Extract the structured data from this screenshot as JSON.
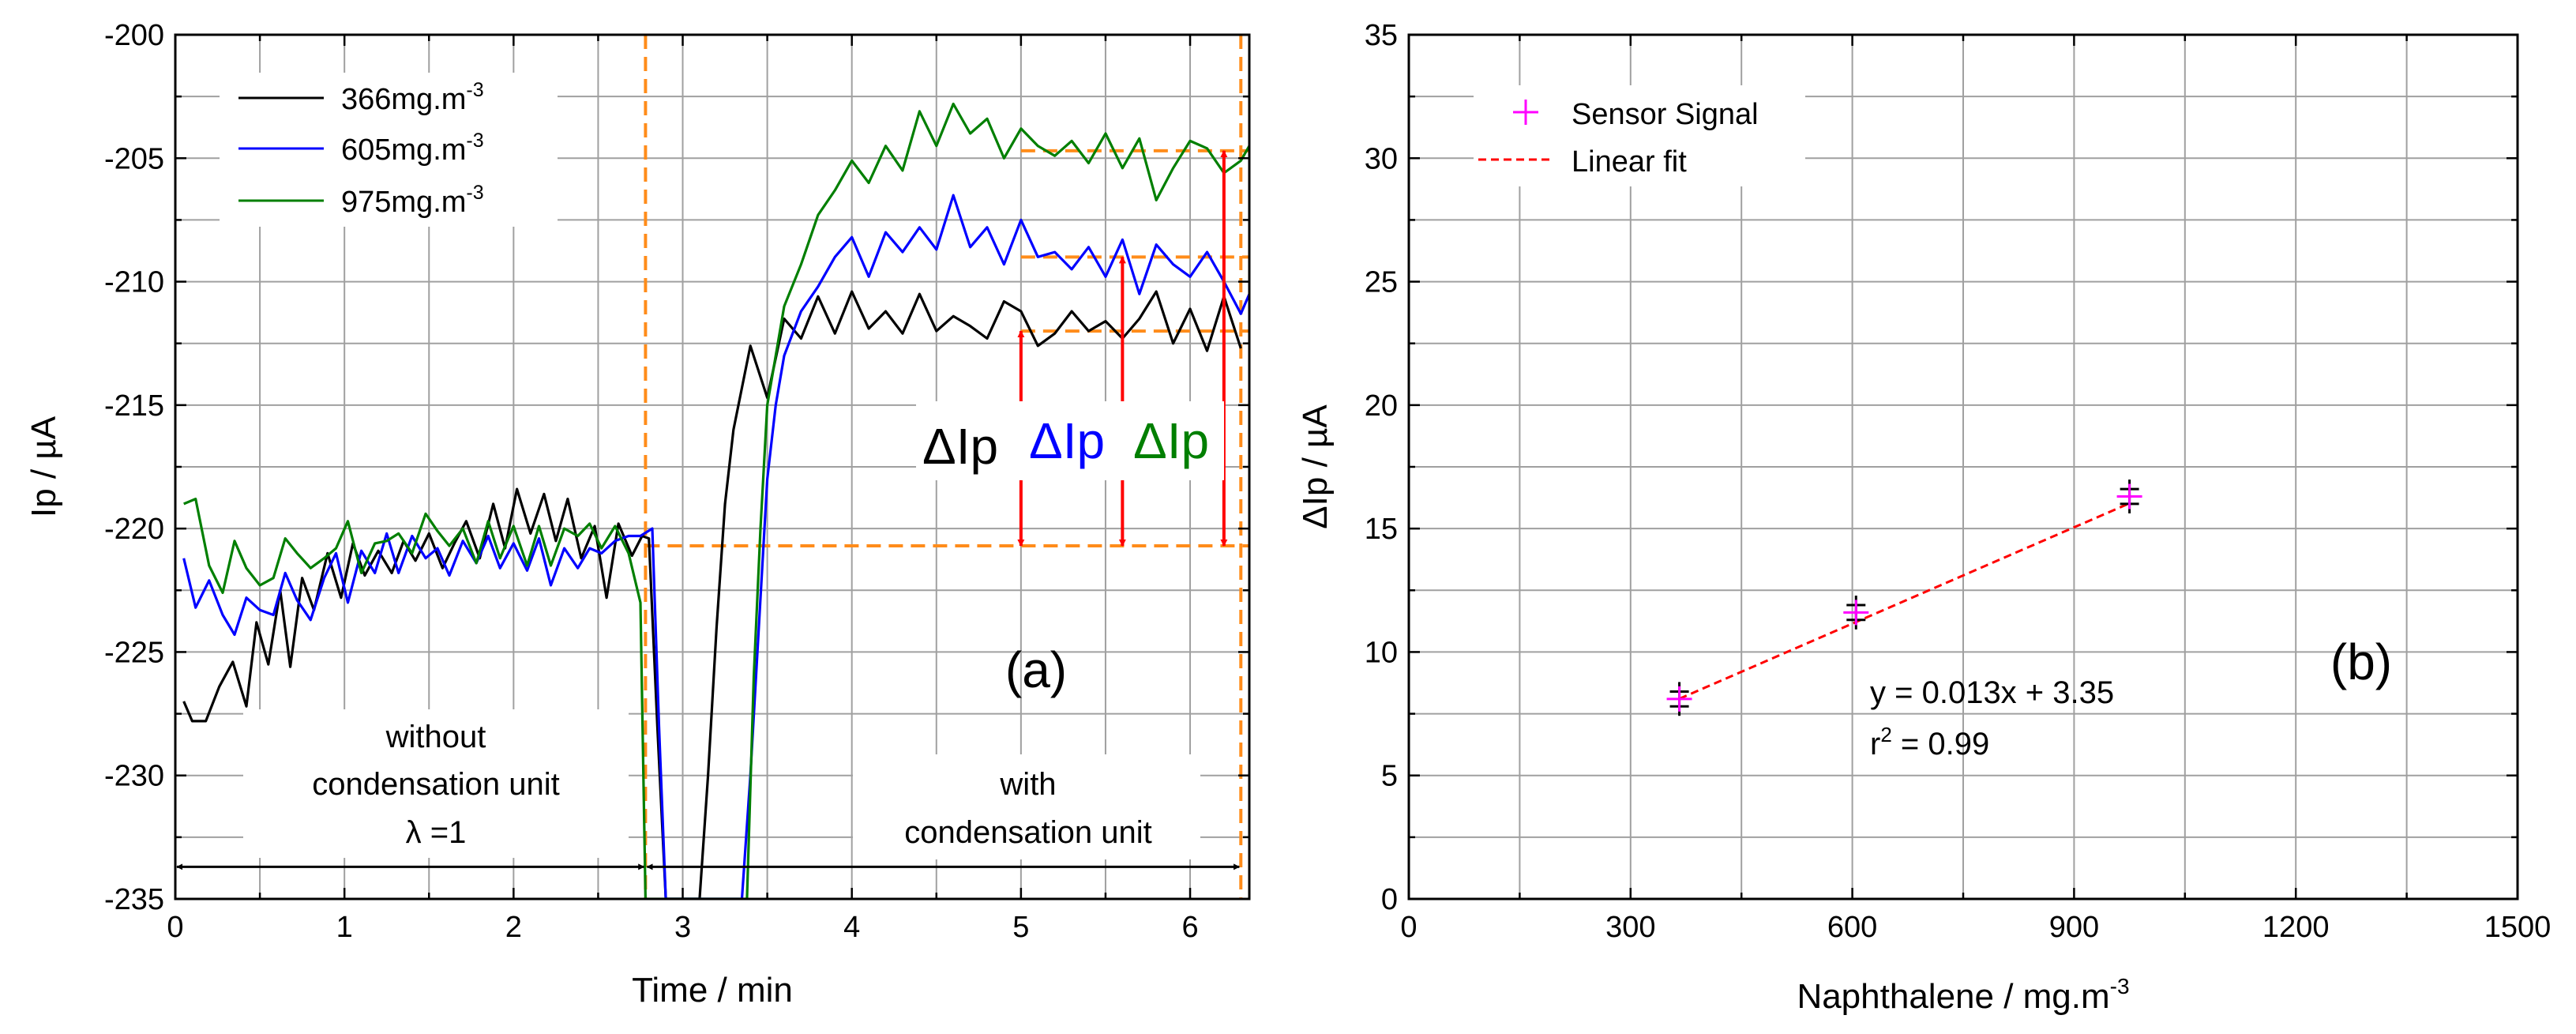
{
  "chart_data": [
    {
      "id": "a",
      "type": "line",
      "panel_label": "(a)",
      "xlabel": "Time / min",
      "ylabel": "Ip / µA",
      "xlim": [
        0,
        6.35
      ],
      "ylim": [
        -235,
        -200
      ],
      "xticks": [
        0,
        1,
        2,
        3,
        4,
        5,
        6
      ],
      "yticks": [
        -235,
        -230,
        -225,
        -220,
        -215,
        -210,
        -205,
        -200
      ],
      "grid": true,
      "legend_position": "top-left",
      "series": [
        {
          "name": "366mg.m",
          "superscript": "-3",
          "color": "#000000",
          "x": [
            0.05,
            0.1,
            0.18,
            0.26,
            0.34,
            0.42,
            0.48,
            0.55,
            0.62,
            0.68,
            0.75,
            0.82,
            0.9,
            0.98,
            1.05,
            1.12,
            1.2,
            1.28,
            1.35,
            1.42,
            1.5,
            1.58,
            1.65,
            1.72,
            1.8,
            1.88,
            1.95,
            2.02,
            2.1,
            2.18,
            2.25,
            2.32,
            2.4,
            2.48,
            2.55,
            2.62,
            2.7,
            2.76,
            2.8,
            2.85,
            2.9,
            3.1,
            3.15,
            3.2,
            3.25,
            3.3,
            3.4,
            3.5,
            3.6,
            3.7,
            3.8,
            3.9,
            4.0,
            4.1,
            4.2,
            4.3,
            4.4,
            4.5,
            4.6,
            4.7,
            4.8,
            4.9,
            5.0,
            5.1,
            5.2,
            5.3,
            5.4,
            5.5,
            5.6,
            5.7,
            5.8,
            5.9,
            6.0,
            6.1,
            6.2,
            6.3
          ],
          "y": [
            -227,
            -227.8,
            -227.8,
            -226.4,
            -225.4,
            -227.2,
            -223.8,
            -225.5,
            -222.5,
            -225.6,
            -222,
            -223.3,
            -221,
            -222.8,
            -220.6,
            -221.9,
            -220.9,
            -221.8,
            -220.5,
            -221.3,
            -220.2,
            -221.6,
            -220.6,
            -219.7,
            -221.2,
            -219,
            -220.8,
            -218.4,
            -220.2,
            -218.6,
            -220.5,
            -218.8,
            -221.2,
            -219.9,
            -222.8,
            -219.8,
            -221.1,
            -220.3,
            -220.4,
            -228,
            -235,
            -235,
            -230,
            -224,
            -219,
            -216,
            -212.6,
            -214.7,
            -211.5,
            -212.3,
            -210.6,
            -212.1,
            -210.4,
            -211.9,
            -211.2,
            -212.1,
            -210.5,
            -212,
            -211.4,
            -211.8,
            -212.3,
            -210.8,
            -211.2,
            -212.6,
            -212.1,
            -211.2,
            -212,
            -211.6,
            -212.3,
            -211.5,
            -210.4,
            -212.5,
            -211.1,
            -212.8,
            -210.6,
            -212.7
          ]
        },
        {
          "name": "605mg.m",
          "superscript": "-3",
          "color": "#0000ff",
          "x": [
            0.05,
            0.12,
            0.2,
            0.28,
            0.35,
            0.42,
            0.5,
            0.58,
            0.65,
            0.72,
            0.8,
            0.88,
            0.95,
            1.02,
            1.1,
            1.18,
            1.25,
            1.32,
            1.4,
            1.48,
            1.55,
            1.62,
            1.7,
            1.78,
            1.85,
            1.92,
            2.0,
            2.08,
            2.15,
            2.22,
            2.3,
            2.38,
            2.45,
            2.52,
            2.6,
            2.68,
            2.75,
            2.82,
            2.86,
            2.9,
            3.35,
            3.4,
            3.45,
            3.5,
            3.55,
            3.6,
            3.7,
            3.8,
            3.9,
            4.0,
            4.1,
            4.2,
            4.3,
            4.4,
            4.5,
            4.6,
            4.7,
            4.8,
            4.9,
            5.0,
            5.1,
            5.2,
            5.3,
            5.4,
            5.5,
            5.6,
            5.7,
            5.8,
            5.9,
            6.0,
            6.1,
            6.2,
            6.3,
            6.35
          ],
          "y": [
            -221.2,
            -223.2,
            -222.1,
            -223.5,
            -224.3,
            -222.8,
            -223.3,
            -223.5,
            -221.8,
            -222.9,
            -223.7,
            -222,
            -221,
            -223,
            -220.9,
            -221.8,
            -220.2,
            -221.8,
            -220.3,
            -221.2,
            -220.8,
            -221.9,
            -220.5,
            -221.4,
            -220.3,
            -221.6,
            -220.6,
            -221.7,
            -220.4,
            -222.3,
            -220.8,
            -221.6,
            -220.8,
            -221,
            -220.5,
            -220.3,
            -220.3,
            -220,
            -228,
            -235,
            -235,
            -230,
            -224,
            -218,
            -215,
            -213,
            -211.2,
            -210.2,
            -209,
            -208.2,
            -209.8,
            -208,
            -208.8,
            -207.8,
            -208.7,
            -206.5,
            -208.6,
            -207.8,
            -209.3,
            -207.5,
            -209,
            -208.8,
            -209.5,
            -208.6,
            -209.8,
            -208.3,
            -210.5,
            -208.5,
            -209.3,
            -209.8,
            -208.8,
            -210,
            -211.3,
            -210.5
          ]
        },
        {
          "name": "975mg.m",
          "superscript": "-3",
          "color": "#007f00",
          "x": [
            0.05,
            0.12,
            0.2,
            0.28,
            0.35,
            0.42,
            0.5,
            0.58,
            0.65,
            0.72,
            0.8,
            0.88,
            0.95,
            1.02,
            1.1,
            1.18,
            1.25,
            1.32,
            1.4,
            1.48,
            1.55,
            1.62,
            1.7,
            1.78,
            1.85,
            1.92,
            2.0,
            2.08,
            2.15,
            2.22,
            2.3,
            2.38,
            2.45,
            2.52,
            2.6,
            2.68,
            2.75,
            2.78,
            3.38,
            3.42,
            3.46,
            3.5,
            3.55,
            3.6,
            3.7,
            3.8,
            3.9,
            4.0,
            4.1,
            4.2,
            4.3,
            4.4,
            4.5,
            4.6,
            4.7,
            4.8,
            4.9,
            5.0,
            5.1,
            5.2,
            5.3,
            5.4,
            5.5,
            5.6,
            5.7,
            5.8,
            5.9,
            6.0,
            6.1,
            6.2,
            6.3,
            6.35
          ],
          "y": [
            -219,
            -218.8,
            -221.5,
            -222.6,
            -220.5,
            -221.6,
            -222.3,
            -222,
            -220.4,
            -221,
            -221.6,
            -221.2,
            -220.8,
            -219.7,
            -221.8,
            -220.6,
            -220.5,
            -220.2,
            -221,
            -219.4,
            -220.1,
            -220.7,
            -220,
            -221.4,
            -219.7,
            -221.2,
            -219.9,
            -221.5,
            -219.9,
            -221.5,
            -220,
            -220.3,
            -219.8,
            -220.8,
            -219.9,
            -221,
            -223,
            -235,
            -235,
            -226,
            -220,
            -215,
            -213,
            -211,
            -209.3,
            -207.3,
            -206.3,
            -205.1,
            -206,
            -204.5,
            -205.5,
            -203.1,
            -204.5,
            -202.8,
            -204,
            -203.4,
            -205,
            -203.8,
            -204.5,
            -204.9,
            -204.3,
            -205.2,
            -204,
            -205.4,
            -204.2,
            -206.7,
            -205.4,
            -204.3,
            -204.6,
            -205.6,
            -205.1,
            -204.5
          ]
        }
      ],
      "delta_labels": [
        {
          "text": "ΔIp",
          "color": "#000000"
        },
        {
          "text": "ΔIp",
          "color": "#0000ff"
        },
        {
          "text": "ΔIp",
          "color": "#007f00"
        }
      ],
      "reference_lines": {
        "baseline_y": -220.7,
        "switch_time": 2.78,
        "end_time": 6.3,
        "levels": [
          {
            "x": [
              5.0,
              6.35
            ],
            "y": -212
          },
          {
            "x": [
              5.0,
              6.35
            ],
            "y": -209
          },
          {
            "x": [
              5.0,
              6.35
            ],
            "y": -204.7
          }
        ],
        "arrows": [
          {
            "x": 5.0,
            "y_from": -220.7,
            "y_to": -212
          },
          {
            "x": 5.6,
            "y_from": -220.7,
            "y_to": -209
          },
          {
            "x": 6.2,
            "y_from": -220.7,
            "y_to": -204.7
          }
        ],
        "span_arrow_y": -233.7
      },
      "annotations": {
        "left_region": [
          "without",
          "condensation unit",
          "λ =1"
        ],
        "right_region": [
          "with",
          "condensation unit"
        ]
      }
    },
    {
      "id": "b",
      "type": "scatter",
      "panel_label": "(b)",
      "xlabel": "Naphthalene / mg.m",
      "xlabel_superscript": "-3",
      "ylabel": "ΔIp / µA",
      "xlim": [
        0,
        1500
      ],
      "ylim": [
        0,
        35
      ],
      "xticks": [
        0,
        300,
        600,
        900,
        1200,
        1500
      ],
      "yticks": [
        0,
        5,
        10,
        15,
        20,
        25,
        30,
        35
      ],
      "grid": true,
      "legend_position": "top-left",
      "series": [
        {
          "name": "Sensor Signal",
          "marker": "+",
          "color": "#ff00ff",
          "x": [
            366,
            605,
            975
          ],
          "y": [
            8.1,
            11.6,
            16.3
          ]
        }
      ],
      "replicates": {
        "color": "#000000",
        "x": [
          366,
          366,
          605,
          605,
          975,
          975
        ],
        "y": [
          8.4,
          7.8,
          11.9,
          11.3,
          16.6,
          16.0
        ]
      },
      "fit": {
        "name": "Linear fit",
        "color": "#ff0000",
        "slope": 0.013,
        "intercept": 3.35,
        "x_range": [
          366,
          975
        ],
        "equation": "y = 0.013x + 3.35",
        "r2_prefix": "r",
        "r2_superscript": "2",
        "r2_suffix": " = 0.99"
      }
    }
  ]
}
